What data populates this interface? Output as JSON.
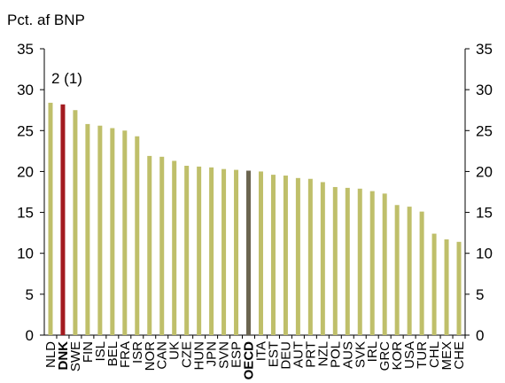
{
  "chart_data": {
    "type": "bar",
    "ylabel": "Pct. af BNP",
    "annotation": "2 (1)",
    "ylim": [
      0,
      35
    ],
    "yticks": [
      0,
      5,
      10,
      15,
      20,
      25,
      30,
      35
    ],
    "grid": false,
    "colors": {
      "default": "#bfbf6a",
      "highlight": "#a31a1f",
      "average": "#6b6550"
    },
    "categories": [
      "NLD",
      "DNK",
      "SWE",
      "FIN",
      "ISL",
      "BEL",
      "FRA",
      "ISR",
      "NOR",
      "CAN",
      "UK",
      "CZE",
      "HUN",
      "JPN",
      "SVN",
      "ESP",
      "OECD",
      "ITA",
      "EST",
      "DEU",
      "AUT",
      "PRT",
      "NZL",
      "POL",
      "AUS",
      "SVK",
      "IRL",
      "GRC",
      "KOR",
      "USA",
      "TUR",
      "CHL",
      "MEX",
      "CHE"
    ],
    "values": [
      28.4,
      28.2,
      27.5,
      25.8,
      25.6,
      25.3,
      25.0,
      24.3,
      21.9,
      21.8,
      21.3,
      20.7,
      20.6,
      20.5,
      20.3,
      20.2,
      20.1,
      20.0,
      19.6,
      19.5,
      19.2,
      19.1,
      18.7,
      18.1,
      18.0,
      17.9,
      17.6,
      17.3,
      15.9,
      15.7,
      15.1,
      12.4,
      11.7,
      11.4
    ],
    "highlight": [
      "DNK"
    ],
    "average": [
      "OECD"
    ],
    "bold_labels": [
      "DNK",
      "OECD"
    ]
  }
}
